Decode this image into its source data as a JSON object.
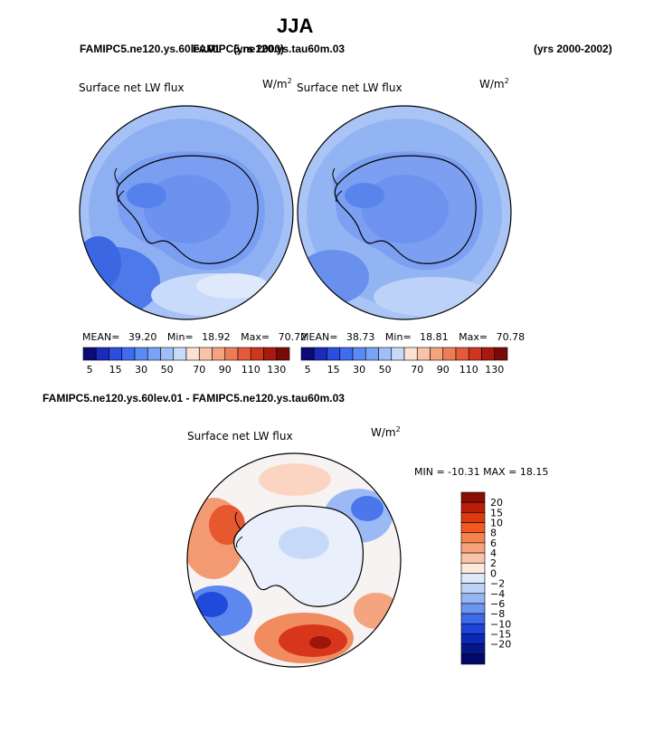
{
  "header": {
    "title": "JJA",
    "case_overlap_a": "FAMIPC5.ne120.ys.60lev.01",
    "case_overlap_b": "FAMIPC5.ne120.ys.tau60m.03",
    "years_left": "(yrs 2000)",
    "years_right": "(yrs 2000-2002)"
  },
  "panel_left": {
    "title": "Surface net LW flux",
    "units": "W/m",
    "units_exp": "2",
    "stats": {
      "mean_label": "MEAN=",
      "mean": "39.20",
      "min_label": "Min=",
      "min": "18.92",
      "max_label": "Max=",
      "max": "70.72"
    }
  },
  "panel_right": {
    "title": "Surface net LW flux",
    "units": "W/m",
    "units_exp": "2",
    "stats": {
      "mean_label": "MEAN=",
      "mean": "38.73",
      "min_label": "Min=",
      "min": "18.81",
      "max_label": "Max=",
      "max": "70.78"
    }
  },
  "top_colorbar": {
    "colors": [
      "#0a0a78",
      "#1b2ab8",
      "#2c4de0",
      "#3f6cf0",
      "#5a8af5",
      "#7aa3f5",
      "#a0bff8",
      "#c7daf9",
      "#fbe2d4",
      "#f9c3a7",
      "#f4a27f",
      "#ee7d57",
      "#e6593a",
      "#cf3620",
      "#a81a10",
      "#7a0a08"
    ],
    "labels": [
      "5",
      "15",
      "30",
      "50",
      "70",
      "90",
      "110",
      "130"
    ]
  },
  "diff_panel": {
    "case_label": "FAMIPC5.ne120.ys.60lev.01 - FAMIPC5.ne120.ys.tau60m.03",
    "title": "Surface net LW flux",
    "units": "W/m",
    "units_exp": "2",
    "minmax": "MIN = -10.31 MAX =  18.15"
  },
  "diff_colorbar": {
    "colors_top_to_bottom": [
      "#8b0e05",
      "#b81e0a",
      "#de3a10",
      "#f05a20",
      "#f4834e",
      "#f6a47c",
      "#f9c4a8",
      "#fde8dc",
      "#dce9fb",
      "#bcd3f8",
      "#94b6f4",
      "#6b95f0",
      "#3d6ae8",
      "#1d45d8",
      "#0c28b8",
      "#061888",
      "#02096a"
    ],
    "labels": [
      "20",
      "15",
      "10",
      "8",
      "6",
      "4",
      "2",
      "0",
      "−2",
      "−4",
      "−6",
      "−8",
      "−10",
      "−15",
      "−20"
    ]
  },
  "map_palette": {
    "land_outline": "#000000",
    "ocean_base": "#b8cff8",
    "ice_base": "#7e9ff2"
  }
}
